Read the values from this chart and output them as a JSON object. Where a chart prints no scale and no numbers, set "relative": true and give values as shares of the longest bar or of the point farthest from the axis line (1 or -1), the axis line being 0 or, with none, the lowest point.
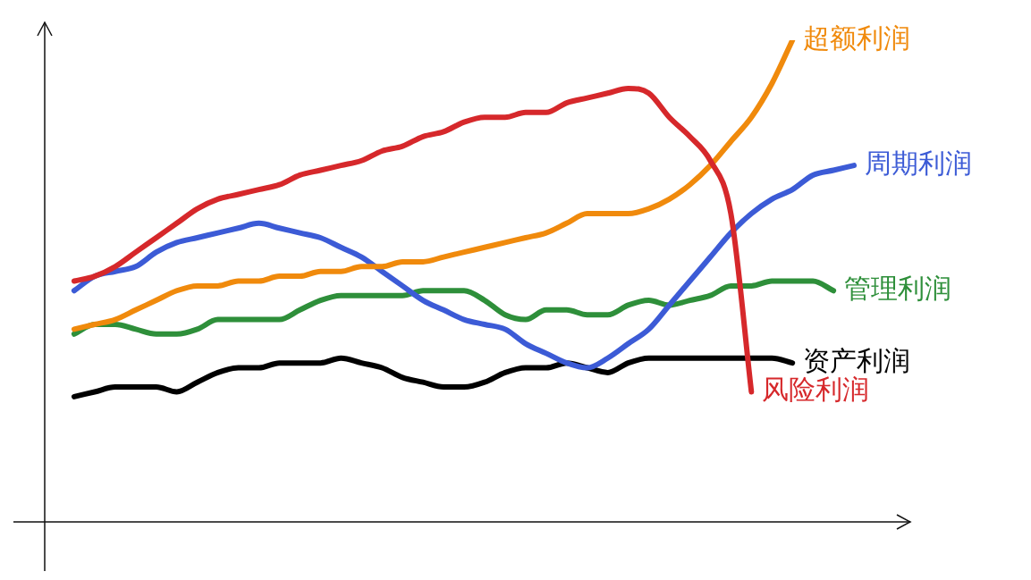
{
  "chart_data": {
    "type": "line",
    "relative": true,
    "categories": [
      null,
      null,
      null,
      null,
      null,
      null,
      null,
      null,
      null,
      null,
      null,
      null,
      null,
      null,
      null,
      null,
      null,
      null,
      null,
      null,
      null,
      null,
      null,
      null,
      null,
      null,
      null,
      null,
      null,
      null,
      null,
      null,
      null,
      null,
      null,
      null,
      null,
      null,
      null,
      null,
      null
    ],
    "series": [
      {
        "name": "风险利润",
        "color": "#d6282b",
        "values": [
          null,
          0.5,
          0.51,
          0.53,
          0.56,
          0.59,
          0.62,
          0.65,
          0.67,
          0.68,
          0.69,
          0.7,
          0.72,
          0.73,
          0.74,
          0.75,
          0.77,
          0.78,
          0.8,
          0.81,
          0.83,
          0.84,
          0.84,
          0.85,
          0.85,
          0.87,
          0.88,
          0.89,
          0.9,
          0.89,
          0.84,
          0.8,
          0.75,
          0.64,
          0.27,
          null,
          null,
          null,
          null,
          null,
          null
        ]
      },
      {
        "name": "超额利润",
        "color": "#f08a0c",
        "values": [
          null,
          0.4,
          0.41,
          0.42,
          0.44,
          0.46,
          0.48,
          0.49,
          0.49,
          0.5,
          0.5,
          0.51,
          0.51,
          0.52,
          0.52,
          0.53,
          0.53,
          0.54,
          0.54,
          0.55,
          0.56,
          0.57,
          0.58,
          0.59,
          0.6,
          0.62,
          0.64,
          0.64,
          0.64,
          0.65,
          0.67,
          0.7,
          0.74,
          0.79,
          0.84,
          0.91,
          1.0,
          null,
          null,
          null,
          null
        ]
      },
      {
        "name": "周期利润",
        "color": "#3c5bd6",
        "values": [
          null,
          0.48,
          0.51,
          0.52,
          0.53,
          0.56,
          0.58,
          0.59,
          0.6,
          0.61,
          0.62,
          0.61,
          0.6,
          0.59,
          0.57,
          0.55,
          0.52,
          0.49,
          0.46,
          0.44,
          0.42,
          0.41,
          0.4,
          0.37,
          0.35,
          0.33,
          0.32,
          0.34,
          0.37,
          0.4,
          0.45,
          0.5,
          0.55,
          0.6,
          0.64,
          0.67,
          0.69,
          0.72,
          0.73,
          0.74,
          null
        ]
      },
      {
        "name": "管理利润",
        "color": "#2e8f3a",
        "values": [
          null,
          0.39,
          0.41,
          0.41,
          0.4,
          0.39,
          0.39,
          0.4,
          0.42,
          0.42,
          0.42,
          0.42,
          0.44,
          0.46,
          0.47,
          0.47,
          0.47,
          0.47,
          0.48,
          0.48,
          0.48,
          0.46,
          0.43,
          0.42,
          0.44,
          0.44,
          0.43,
          0.43,
          0.45,
          0.46,
          0.45,
          0.46,
          0.47,
          0.49,
          0.49,
          0.5,
          0.5,
          0.5,
          0.48,
          null,
          null
        ]
      },
      {
        "name": "资产利润",
        "color": "#000000",
        "values": [
          null,
          0.26,
          0.27,
          0.28,
          0.28,
          0.28,
          0.27,
          0.29,
          0.31,
          0.32,
          0.32,
          0.33,
          0.33,
          0.33,
          0.34,
          0.33,
          0.32,
          0.3,
          0.29,
          0.28,
          0.28,
          0.29,
          0.31,
          0.32,
          0.32,
          0.33,
          0.32,
          0.31,
          0.33,
          0.34,
          0.34,
          0.34,
          0.34,
          0.34,
          0.34,
          0.34,
          0.33,
          null,
          null,
          null,
          null
        ]
      }
    ],
    "legend": false
  }
}
